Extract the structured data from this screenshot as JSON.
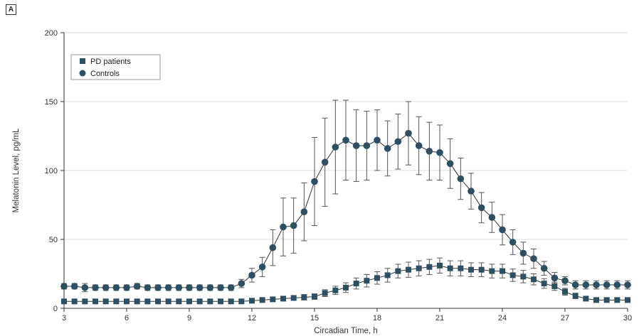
{
  "panel_label": "A",
  "chart_data": {
    "type": "line",
    "xlabel": "Circadian Time, h",
    "ylabel": "Melatonin Level, pg/mL",
    "xlim": [
      3,
      30
    ],
    "ylim": [
      0,
      200
    ],
    "xticks": [
      3,
      6,
      9,
      12,
      15,
      18,
      21,
      24,
      27,
      30
    ],
    "yticks": [
      0,
      50,
      100,
      150,
      200
    ],
    "grid": "horizontal",
    "legend": "top-left",
    "x": [
      3,
      3.5,
      4,
      4.5,
      5,
      5.5,
      6,
      6.5,
      7,
      7.5,
      8,
      8.5,
      9,
      9.5,
      10,
      10.5,
      11,
      11.5,
      12,
      12.5,
      13,
      13.5,
      14,
      14.5,
      15,
      15.5,
      16,
      16.5,
      17,
      17.5,
      18,
      18.5,
      19,
      19.5,
      20,
      20.5,
      21,
      21.5,
      22,
      22.5,
      23,
      23.5,
      24,
      24.5,
      25,
      25.5,
      26,
      26.5,
      27,
      27.5,
      28,
      28.5,
      29,
      29.5,
      30
    ],
    "series": [
      {
        "name": "PD patients",
        "marker": "square",
        "color": "#2e4f61",
        "x": [
          3,
          3.5,
          4,
          4.5,
          5,
          5.5,
          6,
          6.5,
          7,
          7.5,
          8,
          8.5,
          9,
          9.5,
          10,
          10.5,
          11,
          11.5,
          12,
          12.5,
          13,
          13.5,
          14,
          14.5,
          15,
          15.5,
          16,
          16.5,
          17,
          17.5,
          18,
          18.5,
          19,
          19.5,
          20,
          20.5,
          21,
          21.5,
          22,
          22.5,
          23,
          23.5,
          24,
          24.5,
          25,
          25.5,
          26,
          26.5,
          27,
          27.5,
          28,
          28.5,
          29,
          29.5,
          30
        ],
        "values": [
          5,
          5,
          5,
          5,
          5,
          5,
          5,
          5,
          5,
          5,
          5,
          5,
          5,
          5,
          5,
          5,
          5,
          5,
          5.5,
          6,
          6.5,
          7,
          7.5,
          8,
          8.5,
          11,
          13,
          15,
          18,
          20,
          22,
          24,
          27,
          28,
          29,
          30,
          31,
          29,
          29,
          28,
          28,
          27,
          27,
          24,
          23,
          21,
          18,
          16,
          12,
          9,
          7,
          6,
          6,
          6,
          6
        ],
        "error": [
          1.5,
          1.5,
          1.5,
          1.5,
          1.5,
          1.5,
          1.5,
          1.5,
          1.5,
          1.5,
          1.5,
          1.5,
          1.5,
          1.5,
          1.5,
          1.5,
          1.5,
          1.5,
          1.5,
          1.5,
          1.5,
          1.5,
          1.5,
          2,
          2,
          2.5,
          3,
          3.5,
          4,
          4.5,
          4.5,
          5,
          5,
          5.5,
          5.5,
          5.5,
          5.5,
          5.5,
          5.5,
          5,
          5,
          5,
          5,
          4.5,
          4.5,
          4,
          3.5,
          3,
          2.5,
          2,
          1.5,
          1.5,
          1.5,
          1.5,
          1.5
        ]
      },
      {
        "name": "Controls",
        "marker": "circle",
        "color": "#2e4f61",
        "x": [
          3,
          3.5,
          4,
          4.5,
          5,
          5.5,
          6,
          6.5,
          7,
          7.5,
          8,
          8.5,
          9,
          9.5,
          10,
          10.5,
          11,
          11.5,
          12,
          12.5,
          13,
          13.5,
          14,
          14.5,
          15,
          15.5,
          16,
          16.5,
          17,
          17.5,
          18,
          18.5,
          19,
          19.5,
          20,
          20.5,
          21,
          21.5,
          22,
          22.5,
          23,
          23.5,
          24,
          24.5,
          25,
          25.5,
          26,
          26.5,
          27,
          27.5,
          28,
          28.5,
          29,
          29.5,
          30
        ],
        "values": [
          16,
          16,
          15,
          15,
          15,
          15,
          15,
          16,
          15,
          15,
          15,
          15,
          15,
          15,
          15,
          15,
          15,
          18,
          24,
          30,
          44,
          59,
          60,
          70,
          92,
          106,
          117,
          122,
          118,
          118,
          122,
          116,
          121,
          127,
          118,
          114,
          113,
          105,
          94,
          85,
          73,
          66,
          57,
          48,
          40,
          36,
          29,
          22,
          20,
          17,
          17,
          17,
          17,
          17,
          17
        ],
        "error": [
          2,
          2,
          3,
          2,
          2,
          2,
          2,
          2,
          2,
          2,
          2,
          2,
          2,
          2,
          2,
          2,
          2,
          3,
          5,
          7,
          13,
          21,
          20,
          21,
          32,
          32,
          34,
          29,
          26,
          25,
          22,
          20,
          20,
          23,
          21,
          21,
          20,
          18,
          15,
          13,
          11,
          11,
          11,
          9,
          8,
          7,
          5,
          4,
          3,
          3,
          3,
          3,
          3,
          3,
          3
        ]
      }
    ]
  }
}
